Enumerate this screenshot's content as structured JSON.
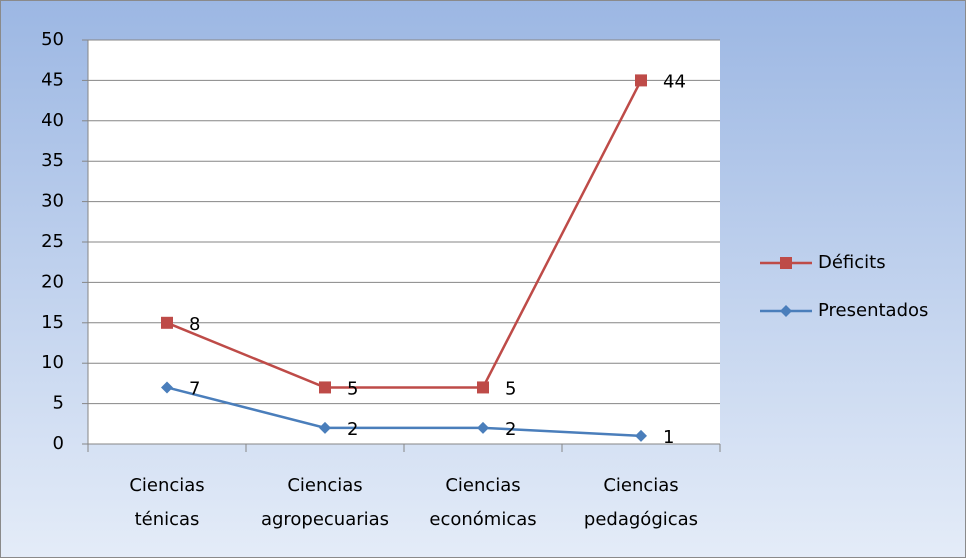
{
  "chart_data": {
    "type": "line",
    "stacked": true,
    "categories": [
      "Ciencias ténicas",
      "Ciencias agropecuarias",
      "Ciencias económicas",
      "Ciencias pedagógicas"
    ],
    "series": [
      {
        "name": "Déficits",
        "color": "#be4b48",
        "marker": "square",
        "values": [
          8,
          5,
          5,
          44
        ]
      },
      {
        "name": "Presentados",
        "color": "#4a7ebb",
        "marker": "diamond",
        "values": [
          7,
          2,
          2,
          1
        ]
      }
    ],
    "ylim": [
      0,
      50
    ],
    "yticks": [
      0,
      5,
      10,
      15,
      20,
      25,
      30,
      35,
      40,
      45,
      50
    ],
    "grid": true,
    "legend": "right"
  }
}
